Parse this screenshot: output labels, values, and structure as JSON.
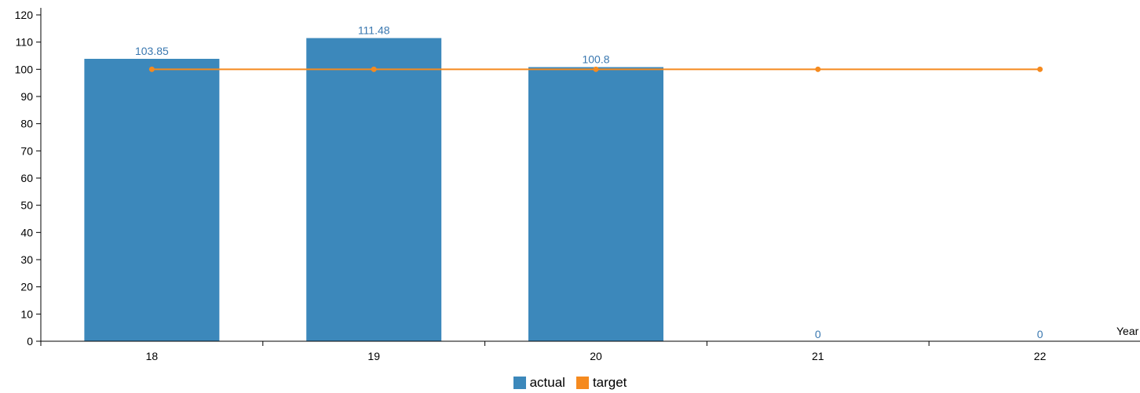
{
  "chart_data": {
    "type": "bar",
    "categories": [
      "18",
      "19",
      "20",
      "21",
      "22"
    ],
    "series": [
      {
        "name": "actual",
        "type": "bar",
        "values": [
          103.85,
          111.48,
          100.8,
          0,
          0
        ],
        "color": "#3c88bb"
      },
      {
        "name": "target",
        "type": "line",
        "values": [
          100,
          100,
          100,
          100,
          100
        ],
        "color": "#f58a1f"
      }
    ],
    "data_labels": [
      "103.85",
      "111.48",
      "100.8",
      "0",
      "0"
    ],
    "xlabel": "Year",
    "ylabel": "",
    "ylim": [
      0,
      120
    ],
    "yticks": [
      0,
      10,
      20,
      30,
      40,
      50,
      60,
      70,
      80,
      90,
      100,
      110,
      120
    ],
    "grid": false,
    "legend_position": "bottom-center",
    "label_color": "#3a78b0",
    "axis_color": "#000000"
  },
  "legend": {
    "items": [
      {
        "label": "actual",
        "color": "#3c88bb"
      },
      {
        "label": "target",
        "color": "#f58a1f"
      }
    ]
  }
}
